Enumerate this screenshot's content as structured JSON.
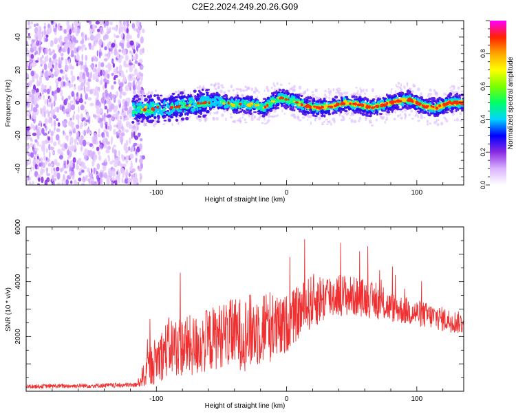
{
  "title": "C2E2.2024.249.20.26.G09",
  "chart_data": [
    {
      "type": "heatmap",
      "xlabel": "Height of straight line (km)",
      "ylabel": "Frequency (Hz)",
      "xlim": [
        -200,
        136
      ],
      "ylim": [
        -50,
        50
      ],
      "xticks": [
        -100,
        0,
        100
      ],
      "xtick_labels": [
        "-100",
        "0",
        "100"
      ],
      "yticks": [
        -40,
        -20,
        0,
        20,
        40
      ],
      "ytick_labels": [
        "-40",
        "-20",
        "0",
        "20",
        "40"
      ],
      "colorbar": {
        "label": "Normalized spectral amplitude",
        "range": [
          0,
          1
        ],
        "ticks": [
          "0.0",
          "0.2",
          "0.4",
          "0.6",
          "0.8"
        ],
        "colors": [
          "#ffffff",
          "#d9b3ff",
          "#8a2be2",
          "#0000ff",
          "#00d5ff",
          "#00ff66",
          "#7cff00",
          "#ffff00",
          "#ffa500",
          "#ff2200",
          "#ff00ff"
        ]
      },
      "ridge": [
        {
          "x": -115,
          "f": -4
        },
        {
          "x": -90,
          "f": -3
        },
        {
          "x": -70,
          "f": -1
        },
        {
          "x": -55,
          "f": 1
        },
        {
          "x": -40,
          "f": -1
        },
        {
          "x": -25,
          "f": -1
        },
        {
          "x": -18,
          "f": -3
        },
        {
          "x": -10,
          "f": 1
        },
        {
          "x": -5,
          "f": 3
        },
        {
          "x": 5,
          "f": 1
        },
        {
          "x": 15,
          "f": -2
        },
        {
          "x": 25,
          "f": -3
        },
        {
          "x": 35,
          "f": -2
        },
        {
          "x": 45,
          "f": 0
        },
        {
          "x": 55,
          "f": -1
        },
        {
          "x": 65,
          "f": -3
        },
        {
          "x": 75,
          "f": -1
        },
        {
          "x": 85,
          "f": 1
        },
        {
          "x": 95,
          "f": 2
        },
        {
          "x": 105,
          "f": -2
        },
        {
          "x": 115,
          "f": -3
        },
        {
          "x": 125,
          "f": 0
        },
        {
          "x": 136,
          "f": 0
        }
      ]
    },
    {
      "type": "line",
      "xlabel": "Height of straight line (km)",
      "ylabel": "SNR (10 * v/v)",
      "xlim": [
        -200,
        136
      ],
      "ylim": [
        0,
        6000
      ],
      "xticks": [
        -100,
        0,
        100
      ],
      "xtick_labels": [
        "-100",
        "0",
        "100"
      ],
      "yticks": [
        2000,
        4000,
        6000
      ],
      "ytick_labels": [
        "2000",
        "4000",
        "6000"
      ],
      "color": "#f03030",
      "envelope": [
        {
          "x": -200,
          "base": 150,
          "spread": 150
        },
        {
          "x": -115,
          "base": 200,
          "spread": 180
        },
        {
          "x": -105,
          "base": 700,
          "spread": 1500
        },
        {
          "x": -90,
          "base": 1300,
          "spread": 2200
        },
        {
          "x": -70,
          "base": 1300,
          "spread": 2300
        },
        {
          "x": -50,
          "base": 1700,
          "spread": 2400
        },
        {
          "x": -30,
          "base": 1700,
          "spread": 2800
        },
        {
          "x": -15,
          "base": 2000,
          "spread": 2800
        },
        {
          "x": -5,
          "base": 1900,
          "spread": 2300
        },
        {
          "x": 5,
          "base": 2400,
          "spread": 2000
        },
        {
          "x": 20,
          "base": 3000,
          "spread": 2000
        },
        {
          "x": 40,
          "base": 3300,
          "spread": 1600
        },
        {
          "x": 60,
          "base": 3200,
          "spread": 1400
        },
        {
          "x": 80,
          "base": 2900,
          "spread": 1100
        },
        {
          "x": 100,
          "base": 2700,
          "spread": 1000
        },
        {
          "x": 120,
          "base": 2500,
          "spread": 900
        },
        {
          "x": 136,
          "base": 2350,
          "spread": 800
        }
      ]
    }
  ]
}
